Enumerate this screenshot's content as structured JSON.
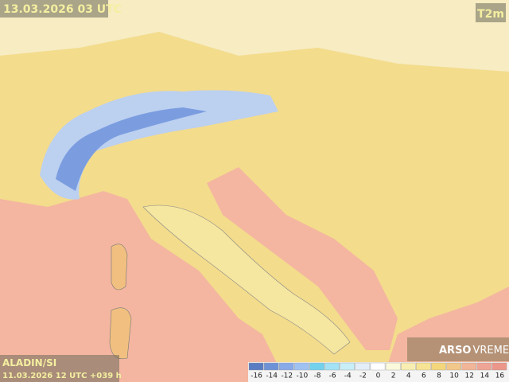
{
  "header": {
    "valid_time": "13.03.2026 03 UTC",
    "parameter": "T2m"
  },
  "footer": {
    "model": "ALADIN/SI",
    "run": "11.03.2026 12 UTC +039 h",
    "logo_bold": "ARSO",
    "logo_light": "VREME"
  },
  "legend": {
    "labels": [
      -16,
      -14,
      -12,
      -10,
      -8,
      -6,
      -4,
      -2,
      0,
      2,
      4,
      6,
      8,
      10,
      12,
      14,
      16
    ],
    "colors": [
      "#5a7cc2",
      "#6e92d6",
      "#88aae8",
      "#9fc2f2",
      "#72d2ee",
      "#a2e2f4",
      "#c8eef8",
      "#e4eef8",
      "#ffffff",
      "#fbf9dc",
      "#f9eeb2",
      "#f7e394",
      "#f4d67c",
      "#f2c78a",
      "#f1b597",
      "#efa595",
      "#ec978a"
    ]
  }
}
